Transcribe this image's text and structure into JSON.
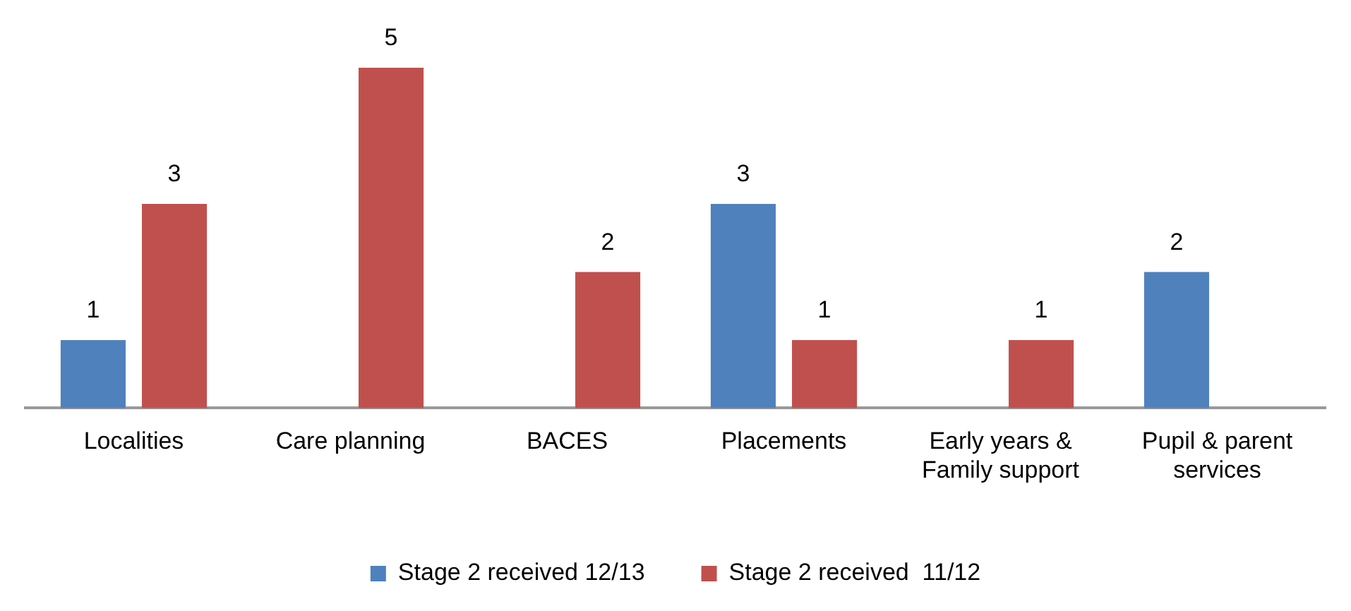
{
  "chart_data": {
    "type": "bar",
    "categories": [
      "Localities",
      "Care planning",
      "BACES",
      "Placements",
      "Early years & Family support",
      "Pupil & parent services"
    ],
    "series": [
      {
        "name": "Stage 2 received 12/13",
        "color": "#4f81bd",
        "values": [
          1,
          null,
          null,
          3,
          null,
          2
        ]
      },
      {
        "name": "Stage 2 received  11/12",
        "color": "#c0504d",
        "values": [
          3,
          5,
          2,
          1,
          1,
          null
        ]
      }
    ],
    "data_labels": true,
    "grid": false,
    "legend": "bottom"
  }
}
